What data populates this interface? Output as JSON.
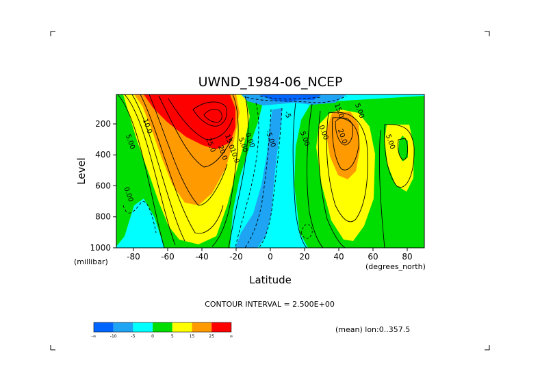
{
  "chart_data": {
    "type": "heatmap",
    "subtype": "filled-contour",
    "title": "UWND_1984-06_NCEP",
    "xlabel": "Latitude",
    "xunits": "(degrees_north)",
    "ylabel": "Level",
    "yunits": "(millibar)",
    "xlim": [
      -90,
      90
    ],
    "ylim": [
      1000,
      10
    ],
    "y_reversed": true,
    "x_ticks": [
      -80,
      -60,
      -40,
      -20,
      0,
      20,
      40,
      60,
      80
    ],
    "x_tick_labels": [
      "-80",
      "-60",
      "-40",
      "-20",
      "0",
      "20",
      "40",
      "60",
      "80"
    ],
    "y_ticks": [
      200,
      400,
      600,
      800,
      1000
    ],
    "y_tick_labels": [
      "200",
      "400",
      "600",
      "800",
      "1000"
    ],
    "contour_interval_text": "CONTOUR INTERVAL = 2.500E+00",
    "region_note": "(mean) lon:0..357.5",
    "colorbar": {
      "levels": [
        "-∞",
        "-10",
        "-5",
        "0",
        "5",
        "15",
        "25",
        "∞"
      ],
      "colors": [
        "#0066ff",
        "#1ea4f2",
        "#00ffff",
        "#00dd00",
        "#ffff00",
        "#ff9a00",
        "#ff0000"
      ]
    },
    "contour_labels": [
      {
        "text": "10.0",
        "lat": -73,
        "lev": 220
      },
      {
        "text": "5.00",
        "lat": -83,
        "lev": 320
      },
      {
        "text": "0.00",
        "lat": -84,
        "lev": 660
      },
      {
        "text": "25.0",
        "lat": -36,
        "lev": 340
      },
      {
        "text": "20.0",
        "lat": -29,
        "lev": 390
      },
      {
        "text": "15.0",
        "lat": -25,
        "lev": 320
      },
      {
        "text": "10.0",
        "lat": -22,
        "lev": 410
      },
      {
        "text": "5.00",
        "lat": -17,
        "lev": 340
      },
      {
        "text": "0.00",
        "lat": -13,
        "lev": 310
      },
      {
        "text": "-5.00",
        "lat": -1,
        "lev": 300
      },
      {
        "text": "-5",
        "lat": 9,
        "lev": 145
      },
      {
        "text": "5.00",
        "lat": 19,
        "lev": 300
      },
      {
        "text": "0.00",
        "lat": 30,
        "lev": 260
      },
      {
        "text": "15.0",
        "lat": 39,
        "lev": 120
      },
      {
        "text": "5.00",
        "lat": 51,
        "lev": 120
      },
      {
        "text": "20.0",
        "lat": 41,
        "lev": 285
      },
      {
        "text": "5.00",
        "lat": 69,
        "lev": 320
      }
    ]
  }
}
